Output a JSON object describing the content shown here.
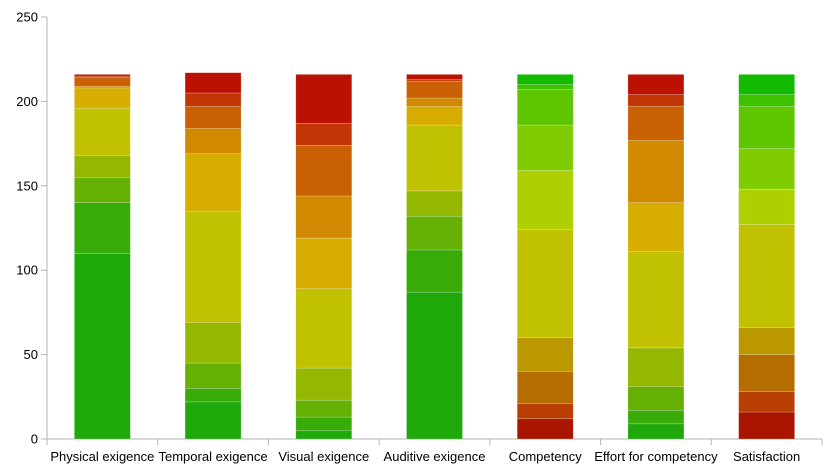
{
  "chart_data": {
    "type": "bar",
    "stacked": true,
    "title": "",
    "xlabel": "",
    "ylabel": "",
    "ylim": [
      0,
      250
    ],
    "yticks": [
      0,
      50,
      100,
      150,
      200,
      250
    ],
    "grid": false,
    "legend": "none",
    "categories": [
      "Physical exigence",
      "Temporal exigence",
      "Visual exigence",
      "Auditive exigence",
      "Competency",
      "Effort for competency",
      "Satisfaction"
    ],
    "series": [
      {
        "color": "#1fa80a",
        "values": [
          110,
          22,
          5,
          87,
          0,
          9,
          0
        ]
      },
      {
        "color": "#38ab08",
        "values": [
          30,
          8,
          8,
          25,
          0,
          8,
          0
        ]
      },
      {
        "color": "#64b005",
        "values": [
          15,
          15,
          10,
          20,
          0,
          14,
          0
        ]
      },
      {
        "color": "#94b802",
        "values": [
          13,
          24,
          19,
          15,
          0,
          23,
          0
        ]
      },
      {
        "color": "#c0c100",
        "values": [
          28,
          66,
          47,
          39,
          64,
          57,
          61
        ]
      },
      {
        "color": "#d6ad00",
        "values": [
          12,
          34,
          30,
          11,
          0,
          29,
          0
        ]
      },
      {
        "color": "#d18902",
        "values": [
          1,
          15,
          25,
          5,
          0,
          37,
          0
        ]
      },
      {
        "color": "#c96004",
        "values": [
          5,
          13,
          30,
          10,
          0,
          20,
          0
        ]
      },
      {
        "color": "#c23505",
        "values": [
          1,
          8,
          13,
          1,
          0,
          7,
          0
        ]
      },
      {
        "color": "#bb1102",
        "values": [
          1,
          12,
          29,
          3,
          0,
          12,
          0
        ]
      }
    ],
    "series_competency_style": "reversed",
    "competency_stack": {
      "comment_values_bottom_to_top": true,
      "colors": [
        "#aa1500",
        "#b83e04",
        "#b56c00",
        "#bb9800",
        "#c0c100",
        "#aed000",
        "#81cc00",
        "#5ec600",
        "#3ec200",
        "#12ba00"
      ],
      "Competency": [
        12,
        9,
        19,
        20,
        64,
        35,
        27,
        21,
        3,
        6
      ],
      "Satisfaction": [
        16,
        12,
        22,
        16,
        61,
        21,
        24,
        25,
        7,
        12
      ]
    }
  }
}
